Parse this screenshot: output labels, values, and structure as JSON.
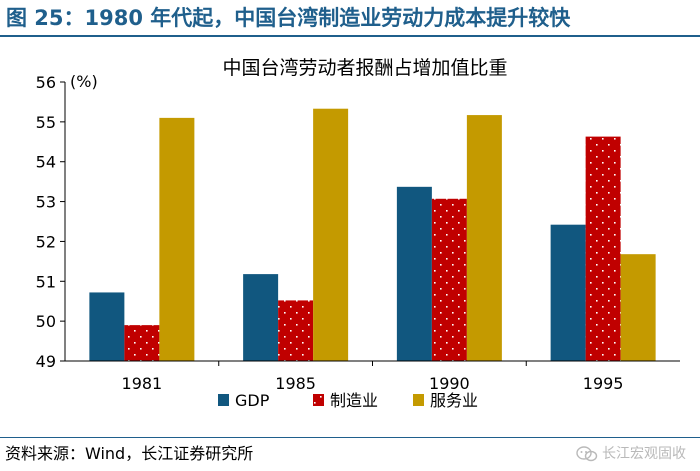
{
  "figure_title": "图 25：1980 年代起，中国台湾制造业劳动力成本提升较快",
  "source_note": "资料来源：Wind，长江证券研究所",
  "watermark": "长江宏观固收",
  "colors": {
    "accent": "#1f5f8c",
    "gdp": "#11577f",
    "manufacturing": "#c00000",
    "services": "#c49a00",
    "watermark": "#b9b9b9"
  },
  "chart_data": {
    "type": "bar",
    "title": "中国台湾劳动者报酬占增加值比重",
    "ylabel": "(%)",
    "xlabel": "",
    "categories": [
      "1981",
      "1985",
      "1990",
      "1995"
    ],
    "series": [
      {
        "name": "GDP",
        "values": [
          50.72,
          51.18,
          53.37,
          52.42
        ]
      },
      {
        "name": "制造业",
        "values": [
          49.9,
          50.52,
          53.07,
          54.63
        ]
      },
      {
        "name": "服务业",
        "values": [
          55.1,
          55.33,
          55.17,
          51.68
        ]
      }
    ],
    "ylim": [
      49,
      56
    ],
    "yticks": [
      49,
      50,
      51,
      52,
      53,
      54,
      55,
      56
    ],
    "grid": false,
    "legend_position": "bottom-center"
  }
}
